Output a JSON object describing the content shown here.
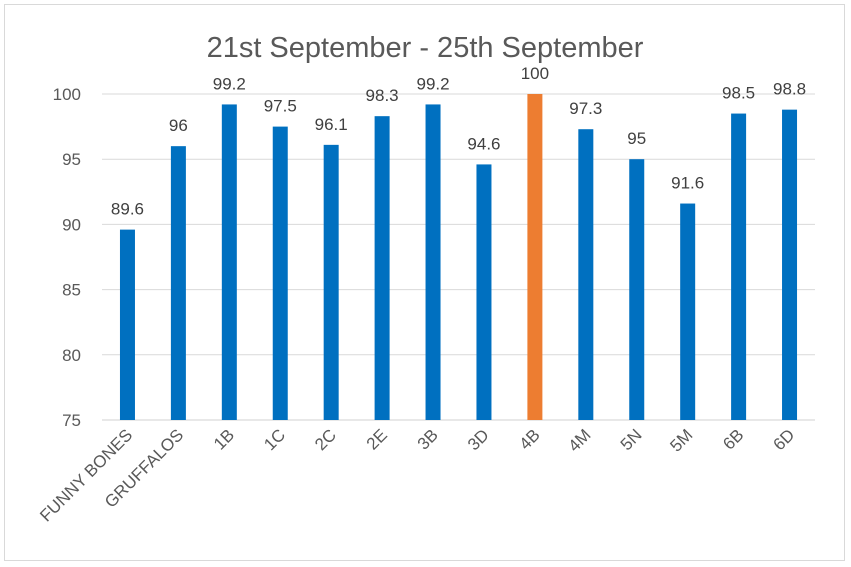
{
  "chart_data": {
    "type": "bar",
    "title": "21st September - 25th September",
    "categories": [
      "FUNNY BONES",
      "GRUFFALOS",
      "1B",
      "1C",
      "2C",
      "2E",
      "3B",
      "3D",
      "4B",
      "4M",
      "5N",
      "5M",
      "6B",
      "6D"
    ],
    "values": [
      89.6,
      96,
      99.2,
      97.5,
      96.1,
      98.3,
      99.2,
      94.6,
      100,
      97.3,
      95,
      91.6,
      98.5,
      98.8
    ],
    "value_labels": [
      "89.6",
      "96",
      "99.2",
      "97.5",
      "96.1",
      "98.3",
      "99.2",
      "94.6",
      "100",
      "97.3",
      "95",
      "91.6",
      "98.5",
      "98.8"
    ],
    "ylim": [
      75,
      100
    ],
    "yticks": [
      "75",
      "80",
      "85",
      "90",
      "95",
      "100"
    ],
    "grid": true,
    "bar_color": "#0070c0",
    "highlight_color": "#ed7d31",
    "highlight_category": "4B"
  }
}
